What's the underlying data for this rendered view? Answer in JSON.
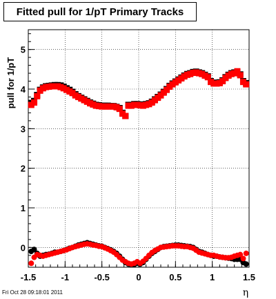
{
  "title": "Fitted pull for 1/pT  Primary Tracks",
  "footer": "Fri Oct 28 09:18:01 2011",
  "chart_data": {
    "type": "scatter",
    "xlabel": "η",
    "ylabel": "pull for 1/pT",
    "xlim": [
      -1.5,
      1.5
    ],
    "ylim": [
      -0.5,
      5.5
    ],
    "x_ticks": [
      "-1.5",
      "-1",
      "-0.5",
      "0",
      "0.5",
      "1",
      "1.5"
    ],
    "y_ticks": [
      "0",
      "1",
      "2",
      "3",
      "4",
      "5"
    ],
    "grid": true,
    "colors": {
      "black_series": "#000000",
      "red_series": "#ff0000"
    },
    "series": [
      {
        "marker": "square",
        "color": "#000000",
        "x": [
          -1.46,
          -1.42,
          -1.38,
          -1.34,
          -1.3,
          -1.26,
          -1.22,
          -1.18,
          -1.14,
          -1.1,
          -1.06,
          -1.02,
          -0.98,
          -0.94,
          -0.9,
          -0.86,
          -0.82,
          -0.78,
          -0.74,
          -0.7,
          -0.66,
          -0.62,
          -0.58,
          -0.54,
          -0.5,
          -0.46,
          -0.42,
          -0.38,
          -0.34,
          -0.3,
          -0.26,
          -0.22,
          -0.18,
          -0.14,
          -0.1,
          -0.06,
          -0.02,
          0.02,
          0.06,
          0.1,
          0.14,
          0.18,
          0.22,
          0.26,
          0.3,
          0.34,
          0.38,
          0.42,
          0.46,
          0.5,
          0.54,
          0.58,
          0.62,
          0.66,
          0.7,
          0.74,
          0.78,
          0.82,
          0.86,
          0.9,
          0.94,
          0.98,
          1.02,
          1.06,
          1.1,
          1.14,
          1.18,
          1.22,
          1.26,
          1.3,
          1.34,
          1.38,
          1.42,
          1.46
        ],
        "y": [
          3.65,
          3.7,
          3.85,
          3.98,
          4.04,
          4.07,
          4.08,
          4.09,
          4.1,
          4.1,
          4.09,
          4.06,
          4.02,
          3.98,
          3.93,
          3.87,
          3.82,
          3.78,
          3.74,
          3.7,
          3.66,
          3.63,
          3.6,
          3.59,
          3.58,
          3.58,
          3.58,
          3.57,
          3.57,
          3.55,
          3.52,
          3.4,
          3.32,
          3.6,
          3.6,
          3.62,
          3.62,
          3.61,
          3.6,
          3.62,
          3.64,
          3.68,
          3.74,
          3.8,
          3.86,
          3.93,
          4.0,
          4.08,
          4.14,
          4.19,
          4.24,
          4.29,
          4.34,
          4.38,
          4.4,
          4.43,
          4.44,
          4.42,
          4.4,
          4.36,
          4.32,
          4.2,
          4.16,
          4.16,
          4.17,
          4.22,
          4.3,
          4.36,
          4.4,
          4.42,
          4.42,
          4.37,
          4.2,
          4.15
        ]
      },
      {
        "marker": "square",
        "color": "#ff0000",
        "x": [
          -1.46,
          -1.42,
          -1.38,
          -1.34,
          -1.3,
          -1.26,
          -1.22,
          -1.18,
          -1.14,
          -1.1,
          -1.06,
          -1.02,
          -0.98,
          -0.94,
          -0.9,
          -0.86,
          -0.82,
          -0.78,
          -0.74,
          -0.7,
          -0.66,
          -0.62,
          -0.58,
          -0.54,
          -0.5,
          -0.46,
          -0.42,
          -0.38,
          -0.34,
          -0.3,
          -0.26,
          -0.22,
          -0.18,
          -0.14,
          -0.1,
          -0.06,
          -0.02,
          0.02,
          0.06,
          0.1,
          0.14,
          0.18,
          0.22,
          0.26,
          0.3,
          0.34,
          0.38,
          0.42,
          0.46,
          0.5,
          0.54,
          0.58,
          0.62,
          0.66,
          0.7,
          0.74,
          0.78,
          0.82,
          0.86,
          0.9,
          0.94,
          0.98,
          1.02,
          1.06,
          1.1,
          1.14,
          1.18,
          1.22,
          1.26,
          1.3,
          1.34,
          1.38,
          1.42,
          1.46
        ],
        "y": [
          3.6,
          3.66,
          3.82,
          3.96,
          4.02,
          4.05,
          4.06,
          4.07,
          4.07,
          4.07,
          4.05,
          4.02,
          3.98,
          3.94,
          3.9,
          3.84,
          3.8,
          3.76,
          3.72,
          3.68,
          3.64,
          3.61,
          3.58,
          3.57,
          3.56,
          3.56,
          3.56,
          3.56,
          3.56,
          3.54,
          3.5,
          3.38,
          3.32,
          3.58,
          3.58,
          3.6,
          3.6,
          3.59,
          3.58,
          3.6,
          3.62,
          3.66,
          3.72,
          3.78,
          3.84,
          3.91,
          3.98,
          4.06,
          4.12,
          4.17,
          4.22,
          4.27,
          4.32,
          4.36,
          4.38,
          4.41,
          4.42,
          4.4,
          4.38,
          4.34,
          4.3,
          4.18,
          4.14,
          4.14,
          4.15,
          4.2,
          4.28,
          4.34,
          4.38,
          4.4,
          4.45,
          4.35,
          4.18,
          4.12
        ]
      },
      {
        "marker": "circle",
        "color": "#000000",
        "x": [
          -1.46,
          -1.42,
          -1.38,
          -1.34,
          -1.3,
          -1.26,
          -1.22,
          -1.18,
          -1.14,
          -1.1,
          -1.06,
          -1.02,
          -0.98,
          -0.94,
          -0.9,
          -0.86,
          -0.82,
          -0.78,
          -0.74,
          -0.7,
          -0.66,
          -0.62,
          -0.58,
          -0.54,
          -0.5,
          -0.46,
          -0.42,
          -0.38,
          -0.34,
          -0.3,
          -0.26,
          -0.22,
          -0.18,
          -0.14,
          -0.1,
          -0.06,
          -0.02,
          0.02,
          0.06,
          0.1,
          0.14,
          0.18,
          0.22,
          0.26,
          0.3,
          0.34,
          0.38,
          0.42,
          0.46,
          0.5,
          0.54,
          0.58,
          0.62,
          0.66,
          0.7,
          0.74,
          0.78,
          0.82,
          0.86,
          0.9,
          0.94,
          0.98,
          1.02,
          1.06,
          1.1,
          1.14,
          1.18,
          1.22,
          1.26,
          1.3,
          1.34,
          1.38,
          1.42,
          1.46
        ],
        "y": [
          -0.1,
          -0.05,
          -0.15,
          -0.22,
          -0.2,
          -0.18,
          -0.17,
          -0.15,
          -0.12,
          -0.12,
          -0.1,
          -0.08,
          -0.05,
          -0.02,
          0.0,
          0.03,
          0.06,
          0.08,
          0.1,
          0.12,
          0.1,
          0.08,
          0.06,
          0.04,
          0.03,
          0.0,
          -0.03,
          -0.06,
          -0.1,
          -0.15,
          -0.22,
          -0.3,
          -0.38,
          -0.42,
          -0.44,
          -0.43,
          -0.4,
          -0.42,
          -0.38,
          -0.3,
          -0.22,
          -0.15,
          -0.1,
          -0.05,
          0.0,
          0.02,
          0.03,
          0.04,
          0.05,
          0.06,
          0.06,
          0.05,
          0.04,
          0.03,
          0.02,
          0.0,
          -0.05,
          -0.1,
          -0.12,
          -0.15,
          -0.18,
          -0.2,
          -0.22,
          -0.22,
          -0.24,
          -0.25,
          -0.26,
          -0.27,
          -0.28,
          -0.3,
          -0.3,
          -0.3,
          -0.38,
          -0.42
        ]
      },
      {
        "marker": "circle",
        "color": "#ff0000",
        "x": [
          -1.46,
          -1.42,
          -1.38,
          -1.34,
          -1.3,
          -1.26,
          -1.22,
          -1.18,
          -1.14,
          -1.1,
          -1.06,
          -1.02,
          -0.98,
          -0.94,
          -0.9,
          -0.86,
          -0.82,
          -0.78,
          -0.74,
          -0.7,
          -0.66,
          -0.62,
          -0.58,
          -0.54,
          -0.5,
          -0.46,
          -0.42,
          -0.38,
          -0.34,
          -0.3,
          -0.26,
          -0.22,
          -0.18,
          -0.14,
          -0.1,
          -0.06,
          -0.02,
          0.02,
          0.06,
          0.1,
          0.14,
          0.18,
          0.22,
          0.26,
          0.3,
          0.34,
          0.38,
          0.42,
          0.46,
          0.5,
          0.54,
          0.58,
          0.62,
          0.66,
          0.7,
          0.74,
          0.78,
          0.82,
          0.86,
          0.9,
          0.94,
          0.98,
          1.02,
          1.06,
          1.1,
          1.14,
          1.18,
          1.22,
          1.26,
          1.3,
          1.34,
          1.38,
          1.42,
          1.46
        ],
        "y": [
          -0.4,
          -0.25,
          -0.18,
          -0.2,
          -0.22,
          -0.2,
          -0.18,
          -0.16,
          -0.14,
          -0.12,
          -0.1,
          -0.08,
          -0.06,
          -0.03,
          0.0,
          0.02,
          0.04,
          0.06,
          0.08,
          0.09,
          0.08,
          0.06,
          0.05,
          0.03,
          0.02,
          -0.01,
          -0.04,
          -0.08,
          -0.12,
          -0.18,
          -0.25,
          -0.32,
          -0.36,
          -0.4,
          -0.42,
          -0.4,
          -0.36,
          -0.4,
          -0.35,
          -0.28,
          -0.2,
          -0.13,
          -0.08,
          -0.04,
          0.0,
          0.01,
          0.02,
          0.03,
          0.04,
          0.04,
          0.04,
          0.03,
          0.02,
          0.02,
          0.0,
          -0.02,
          -0.07,
          -0.12,
          -0.14,
          -0.16,
          -0.18,
          -0.2,
          -0.2,
          -0.22,
          -0.24,
          -0.25,
          -0.26,
          -0.26,
          -0.25,
          -0.22,
          -0.2,
          -0.18,
          -0.28,
          -0.15
        ]
      }
    ]
  }
}
